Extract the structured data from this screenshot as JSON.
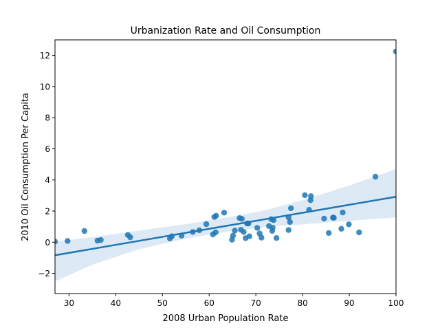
{
  "chart_data": {
    "type": "scatter",
    "title": "Urbanization Rate and Oil Consumption",
    "xlabel": "2008 Urban Population Rate",
    "ylabel": "2010 Oil Consumption Per Capita",
    "xlim": [
      27,
      100
    ],
    "ylim": [
      -3.3,
      13
    ],
    "xticks": [
      30,
      40,
      50,
      60,
      70,
      80,
      90,
      100
    ],
    "yticks": [
      -2,
      0,
      2,
      4,
      6,
      8,
      10,
      12
    ],
    "grid": false,
    "colors": {
      "points": "#1f77b4",
      "line": "#1f77b4",
      "band": "#c6dbef"
    },
    "points": [
      [
        27.0,
        0.04
      ],
      [
        29.7,
        0.08
      ],
      [
        33.3,
        0.72
      ],
      [
        36.1,
        0.1
      ],
      [
        36.8,
        0.14
      ],
      [
        42.6,
        0.47
      ],
      [
        43.1,
        0.32
      ],
      [
        51.6,
        0.24
      ],
      [
        52.0,
        0.38
      ],
      [
        54.1,
        0.42
      ],
      [
        56.5,
        0.66
      ],
      [
        57.9,
        0.77
      ],
      [
        59.4,
        1.16
      ],
      [
        60.8,
        0.5
      ],
      [
        61.1,
        1.62
      ],
      [
        61.5,
        1.7
      ],
      [
        61.4,
        0.63
      ],
      [
        63.2,
        1.9
      ],
      [
        64.9,
        0.16
      ],
      [
        65.1,
        0.42
      ],
      [
        65.5,
        0.74
      ],
      [
        66.5,
        1.55
      ],
      [
        66.8,
        0.8
      ],
      [
        67.0,
        1.5
      ],
      [
        67.4,
        0.66
      ],
      [
        67.8,
        0.26
      ],
      [
        68.1,
        1.2
      ],
      [
        68.4,
        1.2
      ],
      [
        68.6,
        0.38
      ],
      [
        70.3,
        0.92
      ],
      [
        70.8,
        0.56
      ],
      [
        71.2,
        0.29
      ],
      [
        72.8,
        1.04
      ],
      [
        73.3,
        1.48
      ],
      [
        73.5,
        0.73
      ],
      [
        73.6,
        0.93
      ],
      [
        73.8,
        1.42
      ],
      [
        74.4,
        0.27
      ],
      [
        77.0,
        1.6
      ],
      [
        77.0,
        0.78
      ],
      [
        77.3,
        1.3
      ],
      [
        77.5,
        2.18
      ],
      [
        80.5,
        3.02
      ],
      [
        81.4,
        2.08
      ],
      [
        81.7,
        2.7
      ],
      [
        81.8,
        2.96
      ],
      [
        84.6,
        1.52
      ],
      [
        85.6,
        0.59
      ],
      [
        86.5,
        1.58
      ],
      [
        86.7,
        1.57
      ],
      [
        88.3,
        0.86
      ],
      [
        88.6,
        1.91
      ],
      [
        89.9,
        1.15
      ],
      [
        92.1,
        0.63
      ],
      [
        95.6,
        4.21
      ],
      [
        100.0,
        12.25
      ]
    ],
    "regression": {
      "x": [
        27,
        100
      ],
      "y": [
        -0.84,
        2.92
      ]
    },
    "confidence_band": {
      "x": [
        27,
        35,
        45,
        55,
        65,
        72,
        80,
        90,
        100
      ],
      "upper": [
        0.03,
        0.33,
        0.74,
        1.16,
        1.65,
        2.05,
        2.7,
        3.65,
        4.7
      ],
      "lower": [
        -2.52,
        -1.45,
        -0.45,
        0.24,
        0.73,
        0.98,
        1.15,
        1.38,
        1.6
      ]
    }
  }
}
